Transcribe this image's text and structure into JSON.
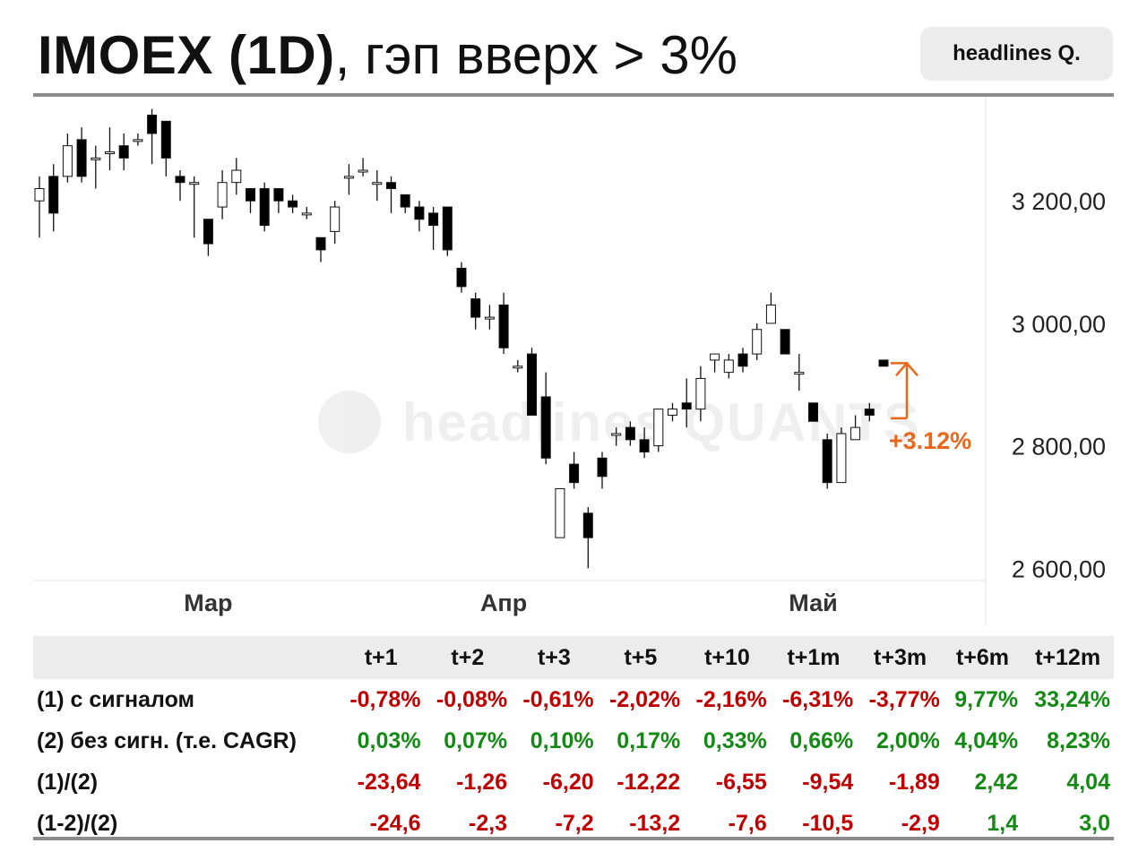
{
  "header": {
    "title_bold": "IMOEX (1D)",
    "title_rest": ", гэп вверх > 3%",
    "badge": "headlines Q."
  },
  "watermark": "headlines QUANTS",
  "colors": {
    "up_candle": "#ffffff",
    "down_candle": "#000000",
    "accent": "#e8671a",
    "negative": "#c00000",
    "positive": "#138a13"
  },
  "chart_data": {
    "type": "candlestick",
    "title": "IMOEX (1D)",
    "y_ticks": [
      "3 200,00",
      "3 000,00",
      "2 800,00",
      "2 600,00"
    ],
    "y_tick_values": [
      3200,
      3000,
      2800,
      2600
    ],
    "ylim": [
      2580,
      3370
    ],
    "x_ticks": [
      {
        "label": "Мар",
        "index": 12
      },
      {
        "label": "Апр",
        "index": 33
      },
      {
        "label": "Май",
        "index": 55
      }
    ],
    "annotation": {
      "text": "+3.12%",
      "from": 2845,
      "to": 2935
    },
    "candles": [
      [
        3200,
        3220,
        3240,
        3140
      ],
      [
        3240,
        3180,
        3260,
        3150
      ],
      [
        3240,
        3290,
        3310,
        3230
      ],
      [
        3300,
        3240,
        3320,
        3230
      ],
      [
        3270,
        3270,
        3290,
        3220
      ],
      [
        3280,
        3280,
        3320,
        3250
      ],
      [
        3290,
        3270,
        3310,
        3250
      ],
      [
        3300,
        3300,
        3310,
        3290
      ],
      [
        3340,
        3310,
        3350,
        3260
      ],
      [
        3330,
        3270,
        3330,
        3240
      ],
      [
        3240,
        3230,
        3250,
        3200
      ],
      [
        3230,
        3230,
        3240,
        3140
      ],
      [
        3170,
        3130,
        3170,
        3110
      ],
      [
        3190,
        3230,
        3250,
        3170
      ],
      [
        3230,
        3250,
        3270,
        3210
      ],
      [
        3220,
        3200,
        3220,
        3180
      ],
      [
        3220,
        3160,
        3230,
        3150
      ],
      [
        3220,
        3200,
        3220,
        3180
      ],
      [
        3200,
        3190,
        3210,
        3180
      ],
      [
        3180,
        3180,
        3190,
        3170
      ],
      [
        3140,
        3120,
        3140,
        3100
      ],
      [
        3150,
        3190,
        3200,
        3130
      ],
      [
        3240,
        3240,
        3260,
        3210
      ],
      [
        3250,
        3250,
        3270,
        3240
      ],
      [
        3230,
        3230,
        3250,
        3200
      ],
      [
        3230,
        3220,
        3240,
        3180
      ],
      [
        3210,
        3190,
        3210,
        3180
      ],
      [
        3190,
        3170,
        3200,
        3150
      ],
      [
        3180,
        3160,
        3190,
        3120
      ],
      [
        3190,
        3120,
        3190,
        3110
      ],
      [
        3090,
        3060,
        3100,
        3050
      ],
      [
        3040,
        3010,
        3050,
        2990
      ],
      [
        3010,
        3010,
        3030,
        2990
      ],
      [
        3030,
        2960,
        3050,
        2950
      ],
      [
        2930,
        2930,
        2940,
        2920
      ],
      [
        2950,
        2850,
        2960,
        2850
      ],
      [
        2880,
        2780,
        2920,
        2770
      ],
      [
        2650,
        2730,
        2730,
        2650
      ],
      [
        2770,
        2740,
        2790,
        2730
      ],
      [
        2690,
        2650,
        2700,
        2600
      ],
      [
        2780,
        2750,
        2790,
        2730
      ],
      [
        2820,
        2820,
        2830,
        2800
      ],
      [
        2830,
        2810,
        2840,
        2800
      ],
      [
        2810,
        2790,
        2830,
        2780
      ],
      [
        2800,
        2860,
        2860,
        2790
      ],
      [
        2850,
        2860,
        2870,
        2840
      ],
      [
        2870,
        2860,
        2910,
        2830
      ],
      [
        2860,
        2910,
        2930,
        2840
      ],
      [
        2940,
        2950,
        2950,
        2920
      ],
      [
        2920,
        2940,
        2950,
        2910
      ],
      [
        2950,
        2930,
        2960,
        2920
      ],
      [
        2950,
        2990,
        3000,
        2940
      ],
      [
        3000,
        3030,
        3050,
        3000
      ],
      [
        2990,
        2950,
        2990,
        2950
      ],
      [
        2920,
        2920,
        2950,
        2890
      ],
      [
        2870,
        2840,
        2870,
        2840
      ],
      [
        2810,
        2740,
        2820,
        2730
      ],
      [
        2740,
        2820,
        2830,
        2740
      ],
      [
        2810,
        2830,
        2850,
        2820
      ],
      [
        2860,
        2850,
        2870,
        2840
      ],
      [
        2940,
        2930,
        2940,
        2930
      ]
    ],
    "candle_format": [
      "open",
      "close",
      "high",
      "low"
    ]
  },
  "table": {
    "headers": [
      "t+1",
      "t+2",
      "t+3",
      "t+5",
      "t+10",
      "t+1m",
      "t+3m",
      "t+6m",
      "t+12m"
    ],
    "rows": [
      {
        "label": "(1) с сигналом",
        "values": [
          "-0,78%",
          "-0,08%",
          "-0,61%",
          "-2,02%",
          "-2,16%",
          "-6,31%",
          "-3,77%",
          "9,77%",
          "33,24%"
        ]
      },
      {
        "label": "(2) без сигн. (т.е. CAGR)",
        "values": [
          "0,03%",
          "0,07%",
          "0,10%",
          "0,17%",
          "0,33%",
          "0,66%",
          "2,00%",
          "4,04%",
          "8,23%"
        ]
      },
      {
        "label": "(1)/(2)",
        "values": [
          "-23,64",
          "-1,26",
          "-6,20",
          "-12,22",
          "-6,55",
          "-9,54",
          "-1,89",
          "2,42",
          "4,04"
        ]
      },
      {
        "label": "(1-2)/(2)",
        "values": [
          "-24,6",
          "-2,3",
          "-7,2",
          "-13,2",
          "-7,6",
          "-10,5",
          "-2,9",
          "1,4",
          "3,0"
        ]
      }
    ]
  }
}
